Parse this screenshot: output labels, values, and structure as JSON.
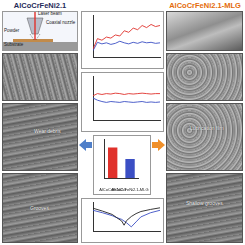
{
  "header": {
    "left_title": "AlCoCrFeNi2.1",
    "right_title": "AlCoCrFeNi2.1-MLG"
  },
  "schematic": {
    "labels": [
      "Laser beam",
      "Coaxial nozzle",
      "Powder",
      "Substrate"
    ]
  },
  "left_panels": {
    "labels": [
      "Wear debris",
      "Grooves"
    ]
  },
  "right_panels": {
    "labels": [
      "Lubrication film",
      "Shallow grooves"
    ]
  },
  "chart_data": [
    {
      "type": "line",
      "x": [
        0,
        2,
        4,
        6,
        8,
        10,
        12,
        14,
        16,
        18,
        20,
        22,
        24,
        26,
        28,
        30
      ],
      "xlim": [
        0,
        30
      ],
      "ylim": [
        0,
        0.8
      ],
      "grid": false,
      "tick_labels": false,
      "series": [
        {
          "color": "#e0312b",
          "values": [
            0.15,
            0.35,
            0.32,
            0.38,
            0.36,
            0.42,
            0.4,
            0.5,
            0.47,
            0.55,
            0.52,
            0.6,
            0.56,
            0.62,
            0.58,
            0.6
          ]
        },
        {
          "color": "#3b4fc4",
          "values": [
            0.12,
            0.28,
            0.25,
            0.27,
            0.24,
            0.26,
            0.3,
            0.27,
            0.25,
            0.28,
            0.26,
            0.29,
            0.27,
            0.28,
            0.26,
            0.27
          ]
        }
      ]
    },
    {
      "type": "line",
      "x": [
        0,
        2,
        4,
        6,
        8,
        10,
        12,
        14,
        16,
        18,
        20,
        22,
        24,
        26,
        28,
        30
      ],
      "xlim": [
        0,
        30
      ],
      "ylim": [
        0,
        1
      ],
      "grid": false,
      "tick_labels": false,
      "series": [
        {
          "color": "#e0312b",
          "values": [
            0.55,
            0.6,
            0.58,
            0.6,
            0.59,
            0.61,
            0.6,
            0.58,
            0.6,
            0.59,
            0.6,
            0.61,
            0.6,
            0.59,
            0.6,
            0.6
          ]
        },
        {
          "color": "#3b4fc4",
          "values": [
            0.5,
            0.45,
            0.42,
            0.4,
            0.42,
            0.41,
            0.4,
            0.42,
            0.41,
            0.4,
            0.41,
            0.42,
            0.4,
            0.41,
            0.4,
            0.41
          ]
        }
      ]
    },
    {
      "type": "bar",
      "categories": [
        "AlCoCrFeNi2.1",
        "AlCoCrFeNi2.1-MLG"
      ],
      "values": [
        7.8,
        4.9
      ],
      "colors": [
        "#e0312b",
        "#3b4fc4"
      ],
      "ylim": [
        0,
        10
      ],
      "grid": false,
      "tick_labels": "x"
    },
    {
      "type": "line",
      "x": [
        -1.0,
        -0.8,
        -0.6,
        -0.5,
        -0.4,
        -0.35,
        -0.3,
        -0.2,
        -0.1,
        0,
        0.2,
        0.4
      ],
      "xlim": [
        -1.0,
        0.4
      ],
      "ylim": [
        -10,
        -3
      ],
      "grid": false,
      "tick_labels": false,
      "series": [
        {
          "color": "#222222",
          "values": [
            -4.5,
            -5.2,
            -6,
            -6.8,
            -7.6,
            -8.6,
            -7.5,
            -6.5,
            -5.8,
            -5.3,
            -4.8,
            -4.4
          ]
        },
        {
          "color": "#3b4fc4",
          "values": [
            -5,
            -5.6,
            -6.3,
            -6.8,
            -7.2,
            -7.6,
            -8,
            -9,
            -7.8,
            -6.6,
            -5.6,
            -5
          ]
        }
      ]
    }
  ]
}
